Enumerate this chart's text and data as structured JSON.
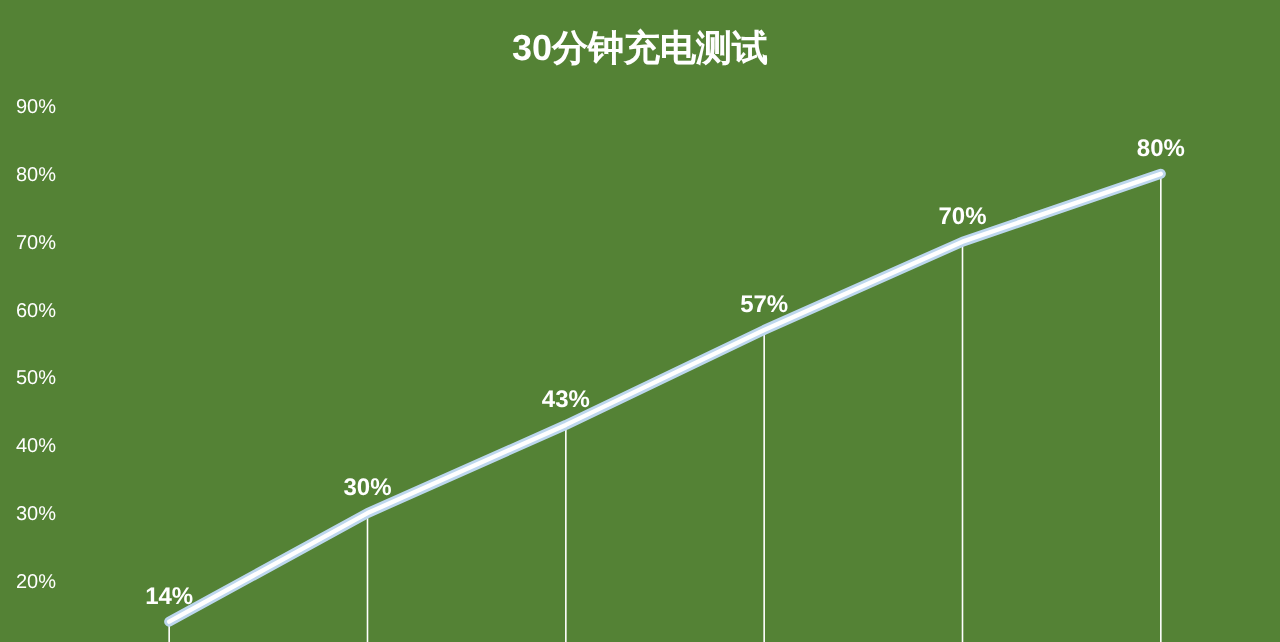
{
  "chart_data": {
    "type": "line",
    "title": "30分钟充电测试",
    "categories": [
      null,
      null,
      null,
      null,
      null,
      null
    ],
    "series": [
      {
        "color": "#ffffff",
        "values": [
          14,
          30,
          43,
          57,
          70,
          80
        ],
        "value_labels": [
          "14%",
          "30%",
          "43%",
          "57%",
          "70%",
          "80%"
        ]
      }
    ],
    "ylim": [
      11,
      90
    ],
    "yticks": [
      {
        "value": 20,
        "label": "20%"
      },
      {
        "value": 30,
        "label": "30%"
      },
      {
        "value": 40,
        "label": "40%"
      },
      {
        "value": 50,
        "label": "50%"
      },
      {
        "value": 60,
        "label": "60%"
      },
      {
        "value": 70,
        "label": "70%"
      },
      {
        "value": 80,
        "label": "80%"
      },
      {
        "value": 90,
        "label": "90%"
      }
    ],
    "grid": false,
    "marker": "none",
    "line_style": "solid"
  }
}
